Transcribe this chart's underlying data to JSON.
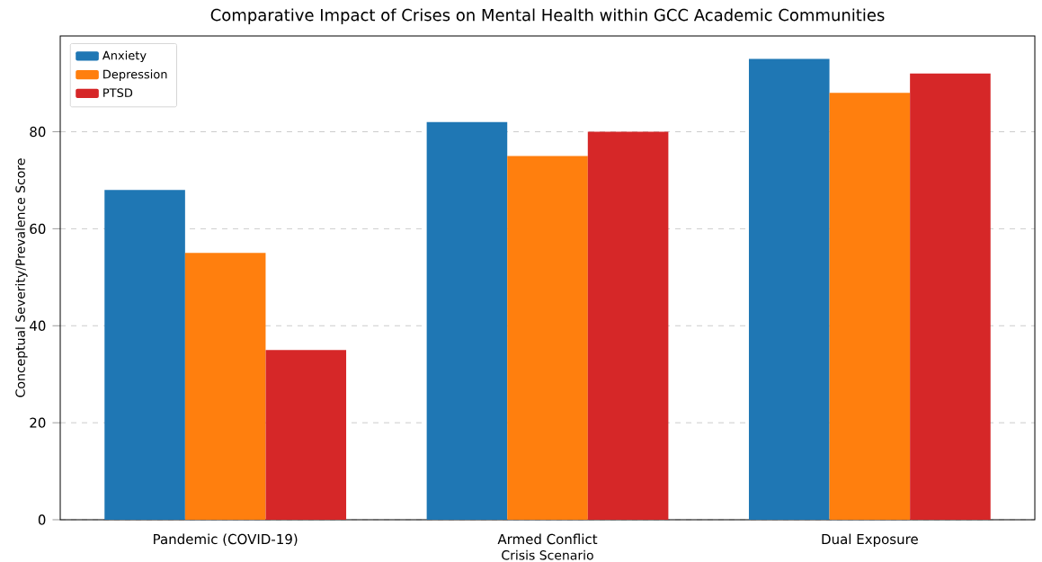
{
  "chart_data": {
    "type": "bar",
    "title": "Comparative Impact of Crises on Mental Health within GCC Academic Communities",
    "xlabel": "Crisis Scenario",
    "ylabel": "Conceptual Severity/Prevalence Score",
    "categories": [
      "Pandemic (COVID-19)",
      "Armed Conflict",
      "Dual Exposure"
    ],
    "series": [
      {
        "name": "Anxiety",
        "color": "#1f77b4",
        "values": [
          68,
          82,
          95
        ]
      },
      {
        "name": "Depression",
        "color": "#ff7f0e",
        "values": [
          55,
          75,
          88
        ]
      },
      {
        "name": "PTSD",
        "color": "#d62728",
        "values": [
          35,
          80,
          92
        ]
      }
    ],
    "ylim": [
      0,
      99.75
    ],
    "yticks": [
      0,
      20,
      40,
      60,
      80
    ],
    "grid": "y",
    "legend": "top left"
  }
}
